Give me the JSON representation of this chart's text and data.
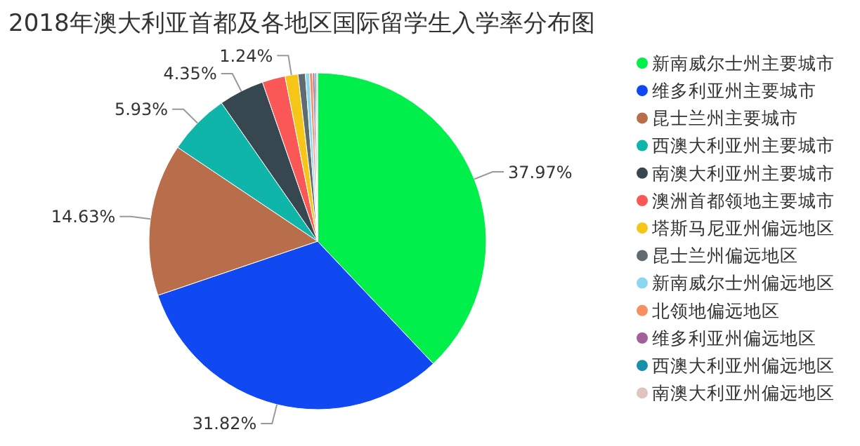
{
  "chart_data": {
    "type": "pie",
    "title": "2018年澳大利亚首都及各地区国际留学生入学率分布图",
    "categories": [
      "新南威尔士州主要城市",
      "维多利亚州主要城市",
      "昆士兰州主要城市",
      "西澳大利亚州主要城市",
      "南澳大利亚州主要城市",
      "澳洲首都领地主要城市",
      "塔斯马尼亚州偏远地区",
      "昆士兰州偏远地区",
      "新南威尔士州偏远地区",
      "北领地偏远地区",
      "维多利亚州偏远地区",
      "西澳大利亚州偏远地区",
      "南澳大利亚州偏远地区"
    ],
    "values": [
      37.97,
      31.82,
      14.63,
      5.93,
      4.35,
      2.2,
      1.24,
      0.7,
      0.4,
      0.3,
      0.2,
      0.15,
      0.11
    ],
    "value_labels": [
      "37.97%",
      "31.82%",
      "14.63%",
      "5.93%",
      "4.35%",
      null,
      "1.24%",
      null,
      null,
      null,
      null,
      null,
      null
    ],
    "colors": [
      "#00ef4a",
      "#1048f2",
      "#b86e4a",
      "#0fb5a8",
      "#37474f",
      "#fa5757",
      "#f5c518",
      "#5f6b70",
      "#8dd6f0",
      "#f79060",
      "#a0609a",
      "#1a90a8",
      "#e0c4c0"
    ],
    "legend": "right"
  }
}
